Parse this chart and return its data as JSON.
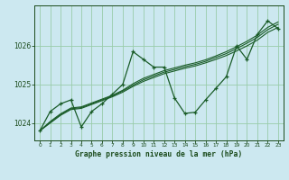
{
  "background_color": "#cce8f0",
  "grid_color": "#99ccaa",
  "line_color": "#1a5c28",
  "text_color": "#1a4a1a",
  "xlim": [
    -0.5,
    23.5
  ],
  "ylim": [
    1023.55,
    1027.05
  ],
  "yticks": [
    1024,
    1025,
    1026
  ],
  "xticks": [
    0,
    1,
    2,
    3,
    4,
    5,
    6,
    7,
    8,
    9,
    10,
    11,
    12,
    13,
    14,
    15,
    16,
    17,
    18,
    19,
    20,
    21,
    22,
    23
  ],
  "xlabel": "Graphe pression niveau de la mer (hPa)",
  "y_main": [
    1023.8,
    1024.3,
    1024.5,
    1024.6,
    1023.9,
    1024.3,
    1024.5,
    1024.75,
    1025.0,
    1025.85,
    1025.65,
    1025.45,
    1025.45,
    1024.65,
    1024.25,
    1024.28,
    1024.6,
    1024.9,
    1025.2,
    1026.0,
    1025.65,
    1026.3,
    1026.65,
    1026.45
  ],
  "y_trend1": [
    1023.8,
    1024.0,
    1024.2,
    1024.35,
    1024.38,
    1024.48,
    1024.58,
    1024.68,
    1024.8,
    1024.95,
    1025.08,
    1025.18,
    1025.28,
    1025.35,
    1025.42,
    1025.48,
    1025.56,
    1025.65,
    1025.75,
    1025.87,
    1026.0,
    1026.15,
    1026.35,
    1026.48
  ],
  "y_trend2": [
    1023.8,
    1024.02,
    1024.22,
    1024.37,
    1024.4,
    1024.5,
    1024.6,
    1024.7,
    1024.83,
    1024.98,
    1025.12,
    1025.22,
    1025.32,
    1025.39,
    1025.46,
    1025.52,
    1025.6,
    1025.7,
    1025.8,
    1025.93,
    1026.07,
    1026.22,
    1026.42,
    1026.56
  ],
  "y_trend3": [
    1023.8,
    1024.04,
    1024.24,
    1024.39,
    1024.42,
    1024.52,
    1024.62,
    1024.72,
    1024.85,
    1025.02,
    1025.16,
    1025.26,
    1025.36,
    1025.43,
    1025.5,
    1025.56,
    1025.64,
    1025.74,
    1025.85,
    1025.98,
    1026.12,
    1026.28,
    1026.48,
    1026.62
  ]
}
